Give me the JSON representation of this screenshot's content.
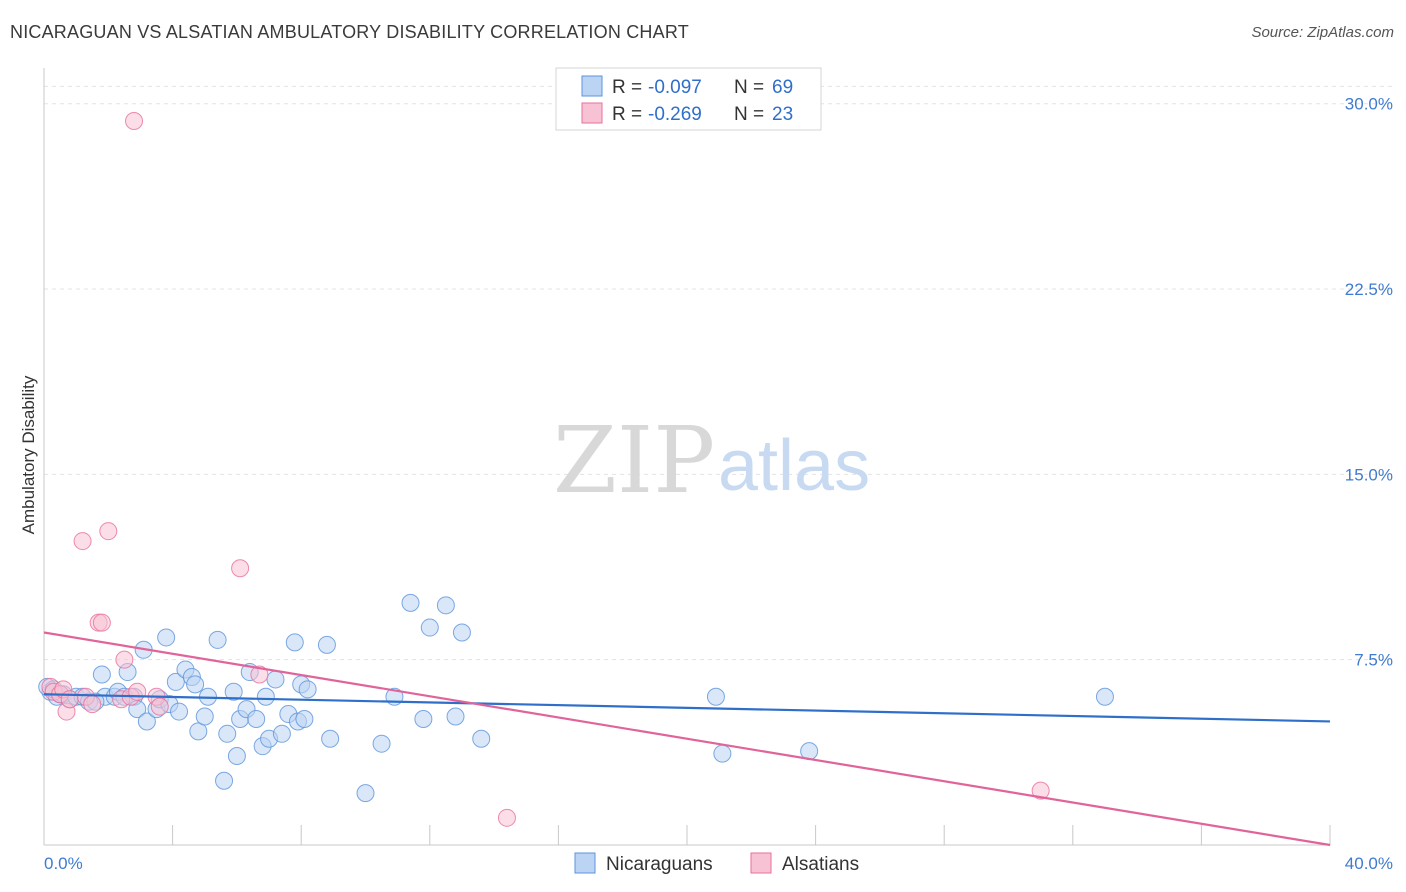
{
  "title": "NICARAGUAN VS ALSATIAN AMBULATORY DISABILITY CORRELATION CHART",
  "source": "Source: ZipAtlas.com",
  "watermark": {
    "zip": "ZIP",
    "atlas": "atlas"
  },
  "colors": {
    "blue": "#5b93db",
    "blue_fill": "#bcd4f4",
    "blue_line": "#2f6fc9",
    "pink": "#e86f9b",
    "pink_fill": "#f7c3d4",
    "pink_line": "#e0649a"
  },
  "legend": {
    "items": [
      {
        "r_label": "R =",
        "r_value": "-0.097",
        "n_label": "N =",
        "n_value": "69"
      },
      {
        "r_label": "R =",
        "r_value": "-0.269",
        "n_label": "N =",
        "n_value": "23"
      }
    ]
  },
  "bottom_legend": [
    "Nicaraguans",
    "Alsatians"
  ],
  "chart_data": {
    "type": "scatter",
    "title": "NICARAGUAN VS ALSATIAN AMBULATORY DISABILITY CORRELATION CHART",
    "xlabel": "",
    "ylabel": "Ambulatory Disability",
    "xlim": [
      0,
      40
    ],
    "ylim": [
      0,
      31
    ],
    "x_tick_labels": [
      "0.0%",
      "40.0%"
    ],
    "y_ticks": [
      7.5,
      15.0,
      22.5,
      30.0
    ],
    "y_tick_labels": [
      "7.5%",
      "15.0%",
      "22.5%",
      "30.0%"
    ],
    "series": [
      {
        "name": "Nicaraguans",
        "trend": {
          "x": [
            0,
            40
          ],
          "y": [
            6.1,
            5.0
          ]
        },
        "points": [
          [
            0.2,
            6.2
          ],
          [
            0.4,
            6.0
          ],
          [
            0.6,
            6.1
          ],
          [
            0.8,
            5.9
          ],
          [
            1.0,
            6.0
          ],
          [
            1.2,
            6.0
          ],
          [
            1.4,
            5.8
          ],
          [
            1.8,
            6.9
          ],
          [
            1.9,
            6.0
          ],
          [
            2.2,
            6.0
          ],
          [
            2.3,
            6.2
          ],
          [
            2.5,
            6.0
          ],
          [
            2.6,
            7.0
          ],
          [
            2.8,
            6.0
          ],
          [
            2.9,
            5.5
          ],
          [
            3.1,
            7.9
          ],
          [
            3.2,
            5.0
          ],
          [
            3.5,
            5.5
          ],
          [
            3.6,
            5.9
          ],
          [
            3.8,
            8.4
          ],
          [
            3.9,
            5.7
          ],
          [
            4.1,
            6.6
          ],
          [
            4.2,
            5.4
          ],
          [
            4.4,
            7.1
          ],
          [
            4.6,
            6.8
          ],
          [
            4.7,
            6.5
          ],
          [
            4.8,
            4.6
          ],
          [
            5.0,
            5.2
          ],
          [
            5.1,
            6.0
          ],
          [
            5.4,
            8.3
          ],
          [
            5.6,
            2.6
          ],
          [
            5.7,
            4.5
          ],
          [
            5.9,
            6.2
          ],
          [
            6.0,
            3.6
          ],
          [
            6.1,
            5.1
          ],
          [
            6.3,
            5.5
          ],
          [
            6.4,
            7.0
          ],
          [
            6.6,
            5.1
          ],
          [
            6.8,
            4.0
          ],
          [
            6.9,
            6.0
          ],
          [
            7.0,
            4.3
          ],
          [
            7.2,
            6.7
          ],
          [
            7.4,
            4.5
          ],
          [
            7.6,
            5.3
          ],
          [
            7.8,
            8.2
          ],
          [
            7.9,
            5.0
          ],
          [
            8.0,
            6.5
          ],
          [
            8.1,
            5.1
          ],
          [
            8.2,
            6.3
          ],
          [
            8.8,
            8.1
          ],
          [
            8.9,
            4.3
          ],
          [
            10.0,
            2.1
          ],
          [
            10.5,
            4.1
          ],
          [
            10.9,
            6.0
          ],
          [
            11.4,
            9.8
          ],
          [
            11.8,
            5.1
          ],
          [
            12.0,
            8.8
          ],
          [
            12.5,
            9.7
          ],
          [
            12.8,
            5.2
          ],
          [
            13.0,
            8.6
          ],
          [
            13.6,
            4.3
          ],
          [
            20.9,
            6.0
          ],
          [
            21.1,
            3.7
          ],
          [
            23.8,
            3.8
          ],
          [
            33.0,
            6.0
          ],
          [
            0.1,
            6.4
          ],
          [
            0.3,
            6.3
          ],
          [
            0.5,
            6.1
          ],
          [
            1.6,
            5.8
          ]
        ]
      },
      {
        "name": "Alsatians",
        "trend": {
          "x": [
            0,
            40
          ],
          "y": [
            8.6,
            0
          ]
        },
        "points": [
          [
            0.2,
            6.4
          ],
          [
            0.3,
            6.2
          ],
          [
            0.5,
            6.1
          ],
          [
            0.6,
            6.3
          ],
          [
            0.7,
            5.4
          ],
          [
            0.8,
            5.9
          ],
          [
            1.2,
            12.3
          ],
          [
            1.3,
            6.0
          ],
          [
            1.5,
            5.7
          ],
          [
            1.7,
            9.0
          ],
          [
            1.8,
            9.0
          ],
          [
            2.0,
            12.7
          ],
          [
            2.4,
            5.9
          ],
          [
            2.5,
            7.5
          ],
          [
            2.7,
            6.0
          ],
          [
            2.8,
            29.3
          ],
          [
            2.9,
            6.2
          ],
          [
            3.5,
            6.0
          ],
          [
            3.6,
            5.6
          ],
          [
            6.1,
            11.2
          ],
          [
            6.7,
            6.9
          ],
          [
            14.4,
            1.1
          ],
          [
            31.0,
            2.2
          ]
        ]
      }
    ]
  }
}
